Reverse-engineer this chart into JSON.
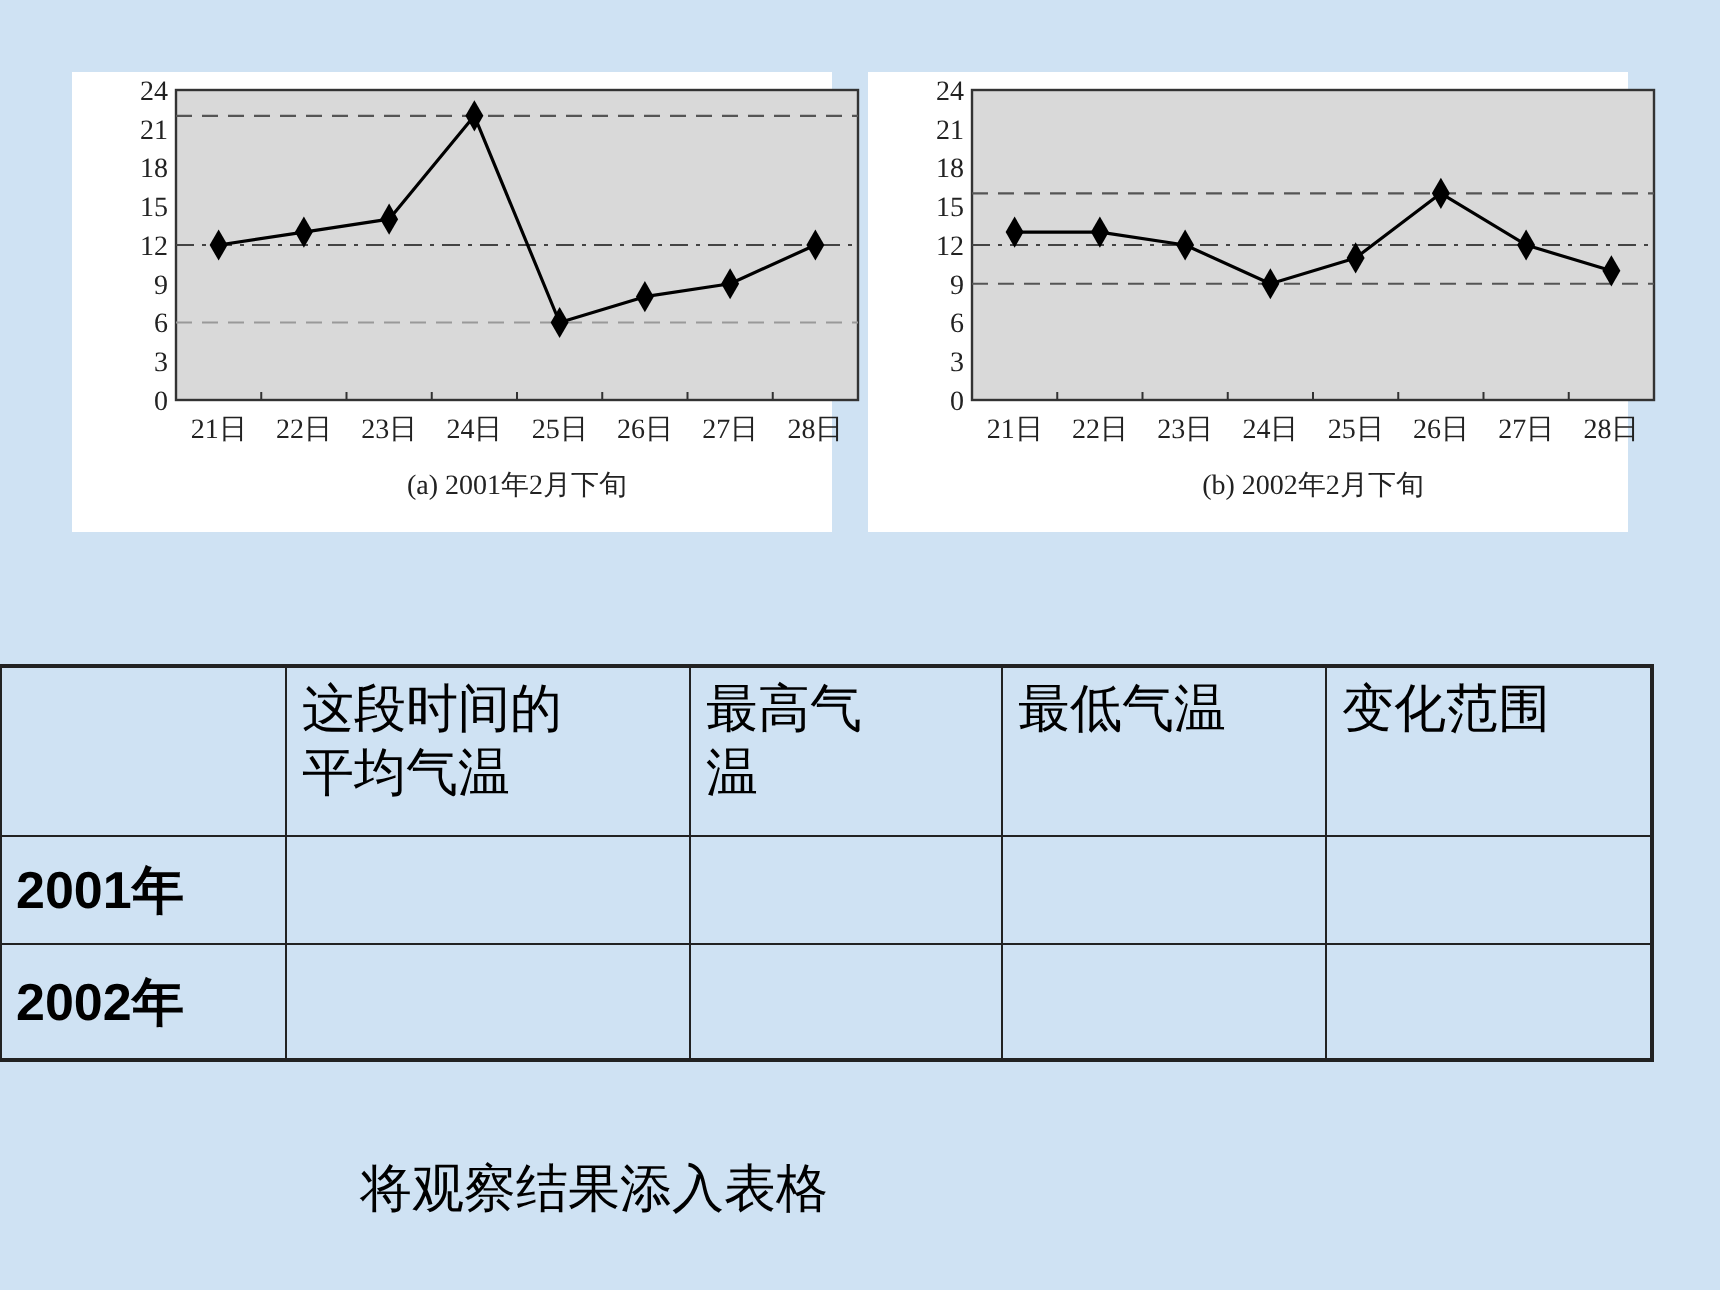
{
  "chart_data": [
    {
      "type": "line",
      "xlabel": "(a)  2001年2月下旬",
      "categories": [
        "21日",
        "22日",
        "23日",
        "24日",
        "25日",
        "26日",
        "27日",
        "28日"
      ],
      "series": [
        {
          "color": "#000000",
          "values": [
            12,
            13,
            14,
            22,
            6,
            8,
            9,
            12
          ]
        }
      ],
      "ylim": [
        0,
        24
      ],
      "yticks": [
        0,
        3,
        6,
        9,
        12,
        15,
        18,
        21,
        24
      ],
      "marker": "diamond",
      "line_style": "solid",
      "ref_lines": [
        {
          "axis": "y",
          "value": 22,
          "line_style": "dashed",
          "color": "#555555"
        },
        {
          "axis": "y",
          "value": 12,
          "line_style": "dashdot",
          "color": "#444444"
        },
        {
          "axis": "y",
          "value": 6,
          "line_style": "dashed",
          "color": "#999999"
        }
      ]
    },
    {
      "type": "line",
      "xlabel": "(b)  2002年2月下旬",
      "categories": [
        "21日",
        "22日",
        "23日",
        "24日",
        "25日",
        "26日",
        "27日",
        "28日"
      ],
      "series": [
        {
          "color": "#000000",
          "values": [
            13,
            13,
            12,
            9,
            11,
            16,
            12,
            10
          ]
        }
      ],
      "ylim": [
        0,
        24
      ],
      "yticks": [
        0,
        3,
        6,
        9,
        12,
        15,
        18,
        21,
        24
      ],
      "marker": "diamond",
      "line_style": "solid",
      "ref_lines": [
        {
          "axis": "y",
          "value": 16,
          "line_style": "dashed",
          "color": "#555555"
        },
        {
          "axis": "y",
          "value": 12,
          "line_style": "dashdot",
          "color": "#444444"
        },
        {
          "axis": "y",
          "value": 9,
          "line_style": "dashed",
          "color": "#555555"
        }
      ]
    },
    {
      "type": "other",
      "categories": [
        "这段时间的平均气温",
        "最高气温",
        "最低气温",
        "变化范围"
      ],
      "y_categories": [
        "2001年",
        "2002年"
      ],
      "annotations": [
        "将观察结果添入表格"
      ]
    }
  ]
}
